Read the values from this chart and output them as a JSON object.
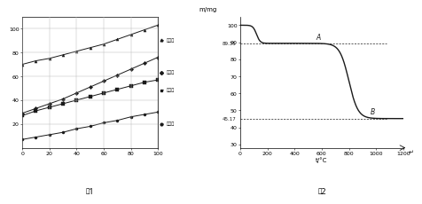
{
  "fig1": {
    "x": [
      0,
      10,
      20,
      30,
      40,
      50,
      60,
      70,
      80,
      90,
      100
    ],
    "lines": [
      {
        "name": "硫酸铵",
        "y": [
          70,
          73,
          75,
          78,
          81,
          84,
          87,
          91,
          95,
          99,
          103
        ],
        "marker": "^"
      },
      {
        "name": "氯化铵",
        "y": [
          29,
          33,
          37,
          41,
          46,
          51,
          56,
          61,
          66,
          71,
          76
        ],
        "marker": "D"
      },
      {
        "name": "氯化錕",
        "y": [
          27,
          31,
          34,
          37,
          40,
          43,
          46,
          49,
          52,
          55,
          57
        ],
        "marker": "s"
      },
      {
        "name": "硫酸錕",
        "y": [
          7,
          9,
          11,
          13,
          16,
          18,
          21,
          23,
          26,
          28,
          30
        ],
        "marker": "o"
      }
    ],
    "xlim": [
      0,
      100
    ],
    "ylim": [
      0,
      110
    ],
    "xticks": [
      0,
      20,
      40,
      60,
      80,
      100
    ],
    "yticks": [
      20,
      40,
      60,
      80,
      100
    ],
    "caption": "图1"
  },
  "fig2": {
    "m_initial": 100,
    "m_A": 89.35,
    "m_B": 45.17,
    "xlim": [
      0,
      1200
    ],
    "ylim": [
      28,
      105
    ],
    "xticks": [
      0,
      200,
      400,
      600,
      800,
      1000,
      1200
    ],
    "yticks": [
      30,
      40,
      50,
      60,
      70,
      80,
      90,
      100
    ],
    "xlabel": "t/°C",
    "ylabel": "m/mg",
    "caption": "图2",
    "label_A": "A",
    "label_B": "B"
  },
  "bg_color": "#ffffff",
  "line_color": "#1a1a1a",
  "grid_color": "#bbbbbb"
}
